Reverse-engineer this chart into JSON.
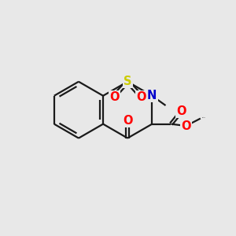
{
  "background_color": "#e8e8e8",
  "bond_color": "#1a1a1a",
  "atom_colors": {
    "O": "#ff0000",
    "N": "#0000cc",
    "S": "#cccc00",
    "C": "#1a1a1a"
  },
  "figsize": [
    3.0,
    3.0
  ],
  "dpi": 100
}
